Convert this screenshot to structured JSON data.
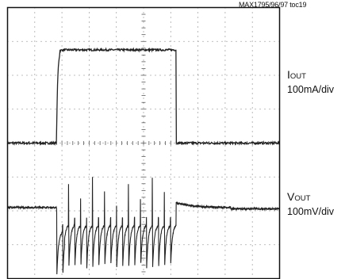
{
  "annotation": "MAX1795/96/97 toc19",
  "chart_data": {
    "type": "line",
    "title": "",
    "grid": true,
    "x_divisions": 10,
    "y_divisions": 8,
    "channels": [
      {
        "name_main": "I",
        "name_sub": "OUT",
        "scale": "100mA/div",
        "baseline_div": 4.0,
        "high_div": 6.75,
        "step_up_div": 1.8,
        "step_down_div": 6.2
      },
      {
        "name_main": "V",
        "name_sub": "OUT",
        "scale": "100mV/div",
        "baseline_div": 2.1,
        "sag_div": 1.25,
        "ripple_cycles": 20,
        "ripple_low_div": 0.3,
        "ripple_spike_div": 3.2,
        "recovery_overshoot_div": 2.25,
        "settled_after_div": 2.0
      }
    ]
  }
}
